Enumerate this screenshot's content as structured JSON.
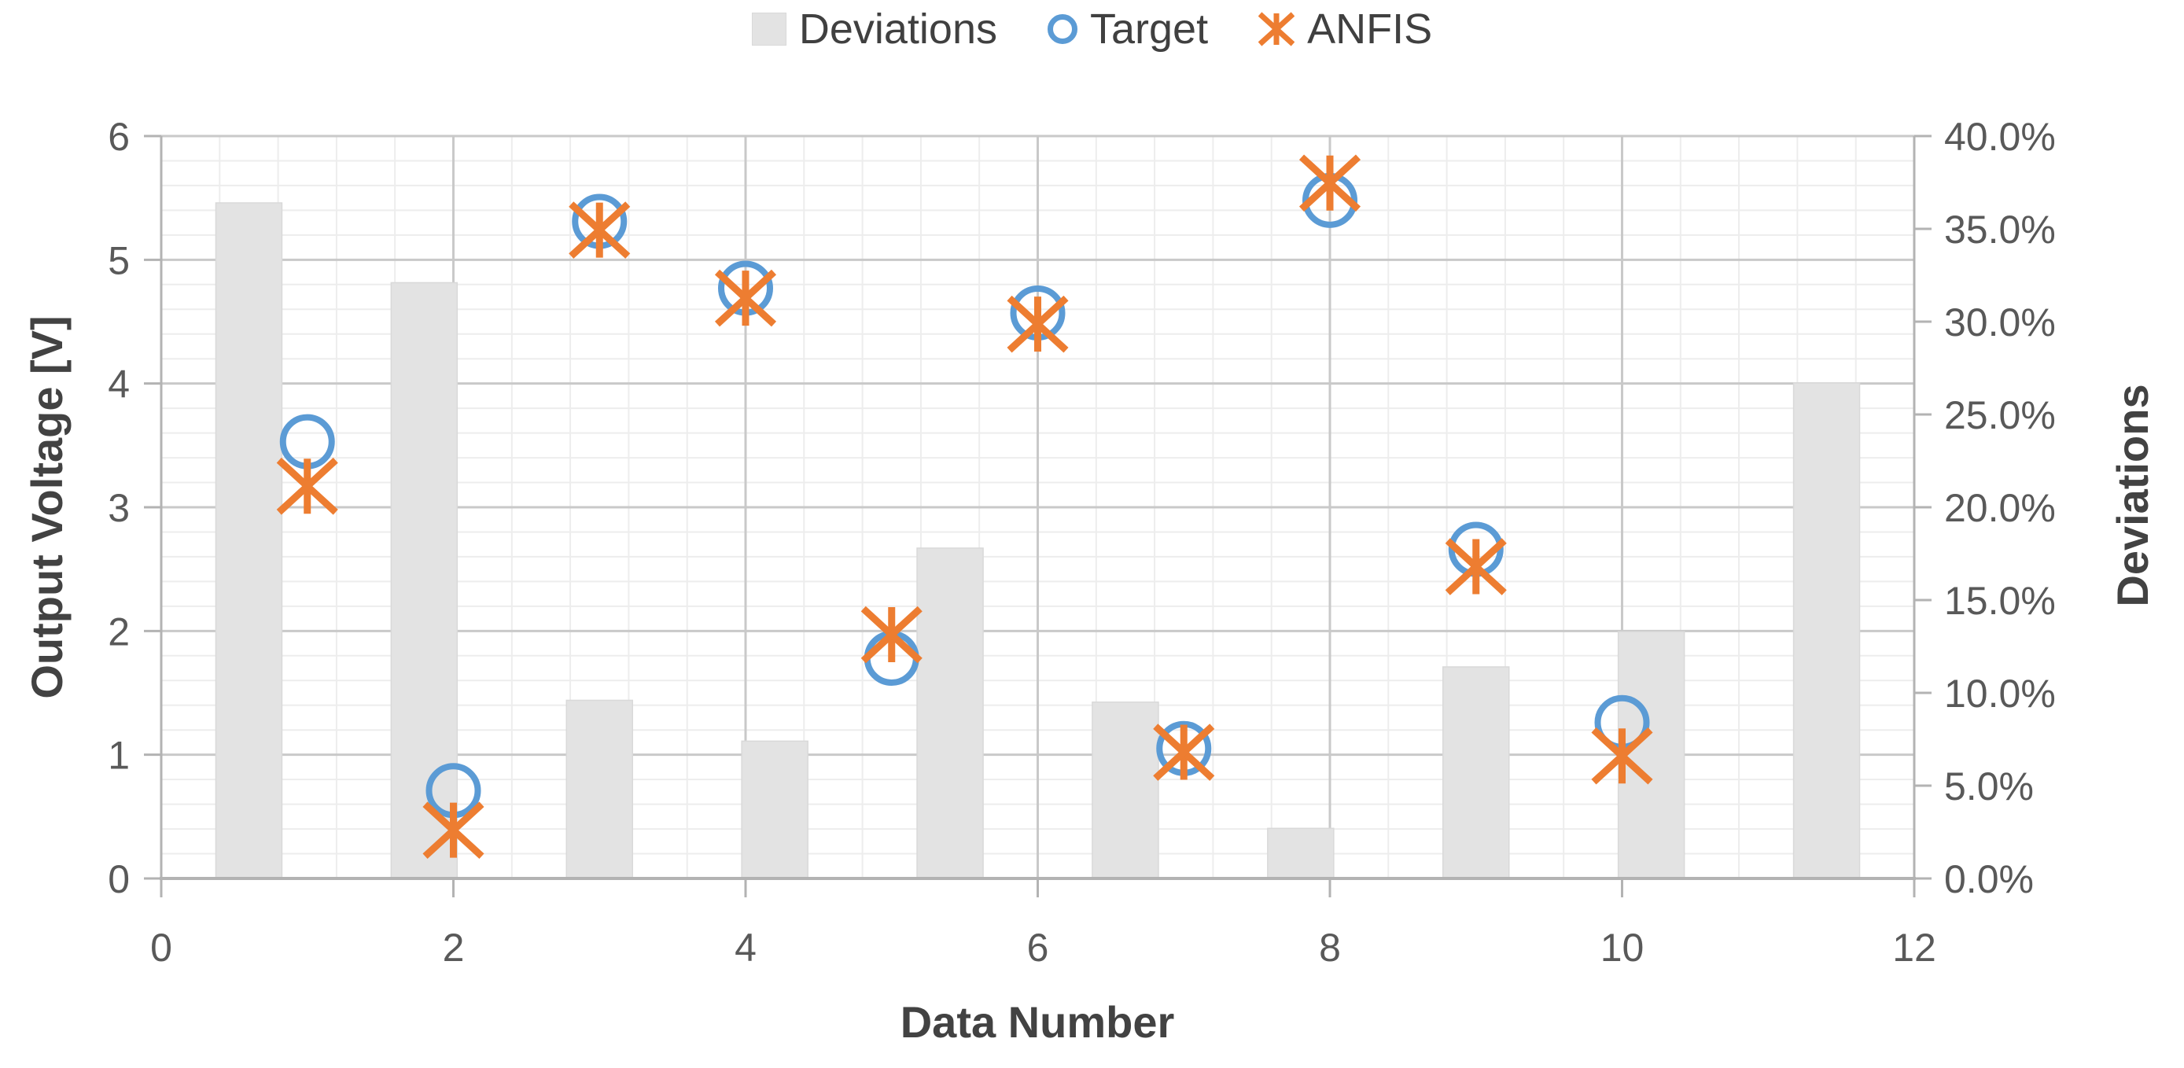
{
  "chart_data": {
    "type": "combo",
    "description": "Bar chart (Deviations, right % axis) combined with two scatter series (Target, ANFIS) on left voltage axis",
    "x": [
      1,
      2,
      3,
      4,
      5,
      6,
      7,
      8,
      9,
      10
    ],
    "series": [
      {
        "name": "Deviations",
        "type": "bar",
        "axis": "right",
        "color": "#e3e3e3",
        "bar_centers_x": [
          0.6,
          1.8,
          3.0,
          4.2,
          5.4,
          6.6,
          7.8,
          9.0,
          10.2,
          11.4
        ],
        "values_pct": [
          36.4,
          32.1,
          9.6,
          7.4,
          17.8,
          9.5,
          2.7,
          11.4,
          13.3,
          26.7
        ]
      },
      {
        "name": "Target",
        "type": "scatter",
        "marker": "circle",
        "axis": "left",
        "color": "#5b9bd5",
        "values_v": [
          3.53,
          0.71,
          5.31,
          4.77,
          1.78,
          4.57,
          1.05,
          5.48,
          2.66,
          1.26
        ]
      },
      {
        "name": "ANFIS",
        "type": "scatter",
        "marker": "star",
        "axis": "left",
        "color": "#ed7d31",
        "values_v": [
          3.17,
          0.39,
          5.24,
          4.69,
          1.97,
          4.48,
          1.02,
          5.62,
          2.52,
          0.99
        ]
      }
    ],
    "xlabel": "Data Number",
    "ylabel_left": "Output Voltage [V]",
    "ylabel_right": "Deviations",
    "x_axis": {
      "min": 0,
      "max": 12,
      "major": 2,
      "minor": 0.4,
      "tick_labels": [
        "0",
        "2",
        "4",
        "6",
        "8",
        "10",
        "12"
      ]
    },
    "y_left": {
      "min": 0,
      "max": 6,
      "major": 1,
      "minor": 0.2,
      "tick_labels": [
        "0",
        "1",
        "2",
        "3",
        "4",
        "5",
        "6"
      ]
    },
    "y_right": {
      "min": 0,
      "max": 40,
      "major": 5,
      "tick_labels": [
        "0.0%",
        "5.0%",
        "10.0%",
        "15.0%",
        "20.0%",
        "25.0%",
        "30.0%",
        "35.0%",
        "40.0%"
      ]
    },
    "grid": true,
    "legend_position": "top-center",
    "colors": {
      "bar_fill": "#e3e3e3",
      "bar_edge": "#d9d9d9",
      "target_blue": "#5b9bd5",
      "anfis_orange": "#ed7d31",
      "major_grid": "#c9c9c9",
      "minor_grid": "#ededed",
      "axis_line": "#b3b3b3",
      "tick_text": "#595959",
      "title_text": "#424242"
    }
  }
}
